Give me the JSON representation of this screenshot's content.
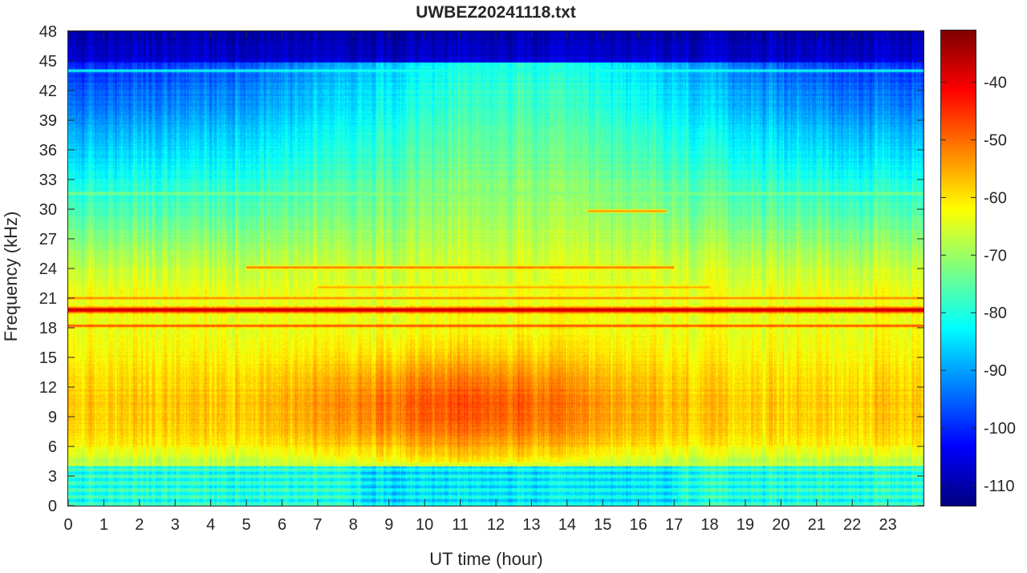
{
  "chart_data": {
    "type": "heatmap",
    "title": "UWBEZ20241118.txt",
    "xlabel": "UT time (hour)",
    "ylabel": "Frequency (kHz)",
    "xlim": [
      0,
      24
    ],
    "ylim": [
      0,
      48
    ],
    "xticks": [
      0,
      1,
      2,
      3,
      4,
      5,
      6,
      7,
      8,
      9,
      10,
      11,
      12,
      13,
      14,
      15,
      16,
      17,
      18,
      19,
      20,
      21,
      22,
      23
    ],
    "yticks": [
      0,
      3,
      6,
      9,
      12,
      15,
      18,
      21,
      24,
      27,
      30,
      33,
      36,
      39,
      42,
      45,
      48
    ],
    "colorbar": {
      "ticks": [
        -40,
        -50,
        -60,
        -70,
        -80,
        -90,
        -100,
        -110
      ],
      "clim": [
        -113.5,
        -31
      ],
      "colormap": "jet"
    },
    "features": {
      "constant_lines": [
        {
          "freq_khz": 19.8,
          "level_db": -36,
          "t_range": [
            0,
            24
          ]
        },
        {
          "freq_khz": 18.2,
          "level_db": -47,
          "t_range": [
            0,
            24
          ]
        },
        {
          "freq_khz": 21.0,
          "level_db": -52,
          "t_range": [
            0,
            24
          ]
        },
        {
          "freq_khz": 24.1,
          "level_db": -50,
          "t_range": [
            5,
            17
          ]
        },
        {
          "freq_khz": 22.1,
          "level_db": -55,
          "t_range": [
            7,
            18
          ]
        },
        {
          "freq_khz": 29.8,
          "level_db": -52,
          "t_range": [
            14.6,
            16.8
          ]
        },
        {
          "freq_khz": 44.0,
          "level_db": -80,
          "t_range": [
            0,
            24
          ]
        },
        {
          "freq_khz": 31.6,
          "level_db": -72,
          "t_range": [
            0,
            24
          ]
        },
        {
          "freq_khz": 4.2,
          "level_db": -66,
          "t_range": [
            0,
            24
          ]
        }
      ],
      "broadband_peak": {
        "t_center": 11,
        "freq_center_khz": 10,
        "level_db": -52
      },
      "background_low_db": -108
    }
  }
}
